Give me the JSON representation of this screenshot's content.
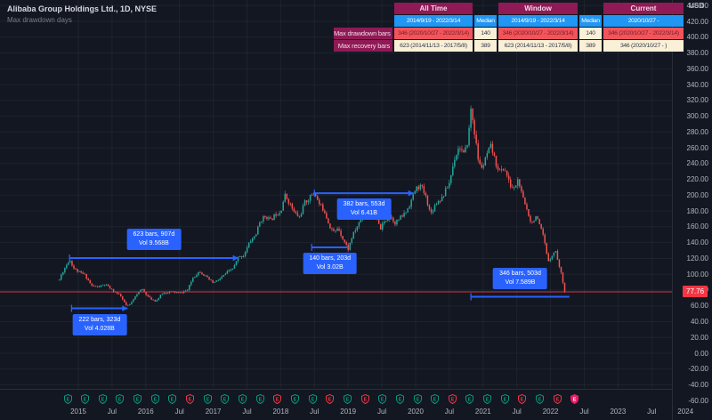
{
  "legend": {
    "title": "Alibaba Group Holdings Ltd., 1D, NYSE",
    "subtitle": "Max drawdown days"
  },
  "stats_table": {
    "section_headers": [
      "All Time",
      "Window",
      "Current"
    ],
    "subheaders": [
      "2014/9/19 - 2022/3/14",
      "Median",
      "2014/9/19 - 2022/3/14",
      "Median",
      "2020/10/27 -"
    ],
    "rows": [
      {
        "label": "Max drawdown bars",
        "cells": [
          "346 (2020/10/27 - 2022/3/14)",
          "140",
          "346 (2020/10/27 - 2022/3/14)",
          "140",
          "346 (2020/10/27 - 2022/3/14)"
        ],
        "styles": [
          "red",
          "cream",
          "red",
          "cream",
          "red"
        ]
      },
      {
        "label": "Max recovery bars",
        "cells": [
          "623 (2014/11/13 - 2017/5/8)",
          "389",
          "623 (2014/11/13 - 2017/5/8)",
          "389",
          "346 (2020/10/27 - )"
        ],
        "styles": [
          "cream",
          "cream",
          "cream",
          "cream",
          "cream"
        ]
      }
    ]
  },
  "colors": {
    "background": "#131722",
    "grid": "rgba(178,181,190,0.07)",
    "axis_text": "#b2b5be",
    "border": "#2a2e39",
    "candle_up": "#26a69a",
    "candle_down": "#ef5350",
    "measure_blue": "#2962ff",
    "price_line_red": "#f23645",
    "table_header_bg": "#8f1a56",
    "table_blue_bg": "#2196f3",
    "table_red_bg": "#f2545b",
    "table_cream_bg": "#faf0d7",
    "earnings_beat": "#089981",
    "earnings_miss": "#f23645",
    "earnings_upcoming": "#e91e63"
  },
  "chart_data": {
    "type": "candlestick",
    "title": "Alibaba Group Holdings Ltd., 1D, NYSE",
    "y_axis": {
      "currency": "USD",
      "min": -60,
      "max": 440,
      "step": 20,
      "current_price": 77.76,
      "current_price_label": "77.76"
    },
    "x_axis": {
      "labels": [
        "2015",
        "Jul",
        "2016",
        "Jul",
        "2017",
        "Jul",
        "2018",
        "Jul",
        "2019",
        "Jul",
        "2020",
        "Jul",
        "2021",
        "Jul",
        "2022",
        "Jul",
        "2023",
        "Jul",
        "2024"
      ]
    },
    "anchors": [
      [
        2014.72,
        93
      ],
      [
        2014.75,
        100
      ],
      [
        2014.87,
        119
      ],
      [
        2014.93,
        108
      ],
      [
        2015.0,
        103
      ],
      [
        2015.1,
        99
      ],
      [
        2015.2,
        85
      ],
      [
        2015.3,
        84
      ],
      [
        2015.4,
        87
      ],
      [
        2015.5,
        80
      ],
      [
        2015.62,
        73
      ],
      [
        2015.72,
        59
      ],
      [
        2015.78,
        63
      ],
      [
        2015.85,
        74
      ],
      [
        2015.95,
        81
      ],
      [
        2016.05,
        70
      ],
      [
        2016.15,
        66
      ],
      [
        2016.25,
        76
      ],
      [
        2016.4,
        78
      ],
      [
        2016.5,
        76
      ],
      [
        2016.62,
        80
      ],
      [
        2016.7,
        96
      ],
      [
        2016.8,
        104
      ],
      [
        2016.9,
        96
      ],
      [
        2017.0,
        89
      ],
      [
        2017.1,
        94
      ],
      [
        2017.2,
        102
      ],
      [
        2017.3,
        108
      ],
      [
        2017.37,
        121
      ],
      [
        2017.45,
        124
      ],
      [
        2017.55,
        142
      ],
      [
        2017.63,
        150
      ],
      [
        2017.7,
        168
      ],
      [
        2017.78,
        174
      ],
      [
        2017.85,
        168
      ],
      [
        2017.92,
        176
      ],
      [
        2018.0,
        180
      ],
      [
        2018.06,
        200
      ],
      [
        2018.12,
        192
      ],
      [
        2018.2,
        178
      ],
      [
        2018.28,
        172
      ],
      [
        2018.35,
        190
      ],
      [
        2018.42,
        196
      ],
      [
        2018.5,
        205
      ],
      [
        2018.56,
        190
      ],
      [
        2018.65,
        180
      ],
      [
        2018.72,
        162
      ],
      [
        2018.8,
        152
      ],
      [
        2018.85,
        160
      ],
      [
        2018.92,
        145
      ],
      [
        2019.0,
        132
      ],
      [
        2019.06,
        148
      ],
      [
        2019.13,
        160
      ],
      [
        2019.2,
        172
      ],
      [
        2019.3,
        182
      ],
      [
        2019.4,
        172
      ],
      [
        2019.48,
        158
      ],
      [
        2019.55,
        168
      ],
      [
        2019.62,
        174
      ],
      [
        2019.7,
        165
      ],
      [
        2019.78,
        172
      ],
      [
        2019.85,
        178
      ],
      [
        2019.92,
        190
      ],
      [
        2020.0,
        208
      ],
      [
        2020.08,
        212
      ],
      [
        2020.16,
        196
      ],
      [
        2020.22,
        176
      ],
      [
        2020.3,
        190
      ],
      [
        2020.4,
        198
      ],
      [
        2020.5,
        216
      ],
      [
        2020.58,
        248
      ],
      [
        2020.65,
        262
      ],
      [
        2020.72,
        250
      ],
      [
        2020.78,
        272
      ],
      [
        2020.82,
        310
      ],
      [
        2020.86,
        288
      ],
      [
        2020.9,
        262
      ],
      [
        2020.94,
        238
      ],
      [
        2021.0,
        236
      ],
      [
        2021.06,
        252
      ],
      [
        2021.12,
        262
      ],
      [
        2021.18,
        242
      ],
      [
        2021.25,
        230
      ],
      [
        2021.32,
        234
      ],
      [
        2021.4,
        212
      ],
      [
        2021.46,
        208
      ],
      [
        2021.52,
        220
      ],
      [
        2021.58,
        198
      ],
      [
        2021.65,
        182
      ],
      [
        2021.72,
        164
      ],
      [
        2021.78,
        174
      ],
      [
        2021.85,
        158
      ],
      [
        2021.9,
        146
      ],
      [
        2021.96,
        116
      ],
      [
        2022.02,
        124
      ],
      [
        2022.08,
        130
      ],
      [
        2022.12,
        112
      ],
      [
        2022.16,
        100
      ],
      [
        2022.19,
        88
      ],
      [
        2022.21,
        77.76
      ]
    ],
    "measurements": [
      {
        "label": "623 bars, 907d",
        "volume": "Vol 9.568B",
        "price_level": 120.5,
        "from_year": 2014.87,
        "to_year": 2017.37,
        "label_position": "above",
        "arrow": true
      },
      {
        "label": "222 bars, 323d",
        "volume": "Vol 4.028B",
        "price_level": 56.8,
        "from_year": 2014.9,
        "to_year": 2015.73,
        "label_position": "below",
        "arrow": true
      },
      {
        "label": "140 bars, 203d",
        "volume": "Vol 3.02B",
        "price_level": 134,
        "from_year": 2018.46,
        "to_year": 2019.0,
        "label_position": "below",
        "arrow": false
      },
      {
        "label": "382 bars, 553d",
        "volume": "Vol 6.41B",
        "price_level": 202.5,
        "from_year": 2018.5,
        "to_year": 2019.97,
        "label_position": "below",
        "arrow": true
      },
      {
        "label": "346 bars, 503d",
        "volume": "Vol 7.589B",
        "price_level": 71.5,
        "from_year": 2020.82,
        "to_year": 2022.28,
        "label_position": "above",
        "arrow": false
      }
    ],
    "earnings_markers": [
      "b",
      "b",
      "b",
      "b",
      "b",
      "b",
      "b",
      "m",
      "b",
      "b",
      "b",
      "b",
      "m",
      "b",
      "b",
      "m",
      "b",
      "m",
      "b",
      "b",
      "b",
      "b",
      "m",
      "b",
      "b",
      "b",
      "m",
      "b",
      "m",
      "u"
    ]
  }
}
